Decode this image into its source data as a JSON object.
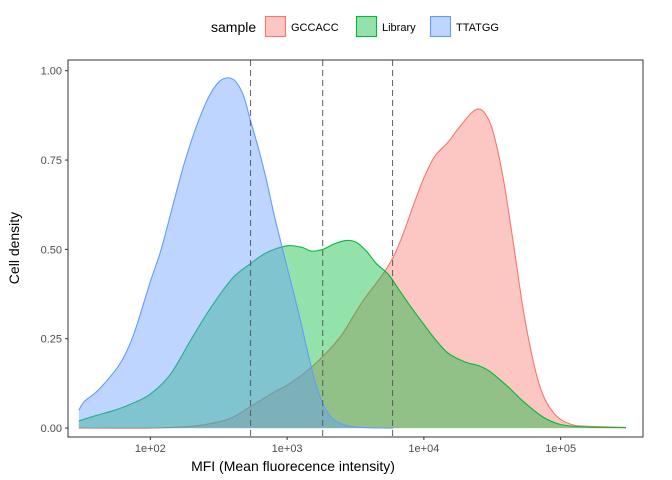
{
  "chart_data": {
    "type": "area",
    "title": "",
    "xlabel": "MFI (Mean fluorecence intensity)",
    "ylabel": "Cell density",
    "x_scale": "log10",
    "xlim": [
      25,
      400000
    ],
    "ylim": [
      -0.025,
      1.03
    ],
    "x_ticks": [
      {
        "value": 100,
        "label": "1e+02"
      },
      {
        "value": 1000,
        "label": "1e+03"
      },
      {
        "value": 10000,
        "label": "1e+04"
      },
      {
        "value": 100000,
        "label": "1e+05"
      }
    ],
    "y_ticks": [
      {
        "value": 0,
        "label": "0.00"
      },
      {
        "value": 0.25,
        "label": "0.25"
      },
      {
        "value": 0.5,
        "label": "0.50"
      },
      {
        "value": 0.75,
        "label": "0.75"
      },
      {
        "value": 1.0,
        "label": "1.00"
      }
    ],
    "legend": {
      "title": "sample",
      "position": "top"
    },
    "grid": false,
    "vlines": [
      540,
      1820,
      5900
    ],
    "series": [
      {
        "name": "GCCACC",
        "stroke": "#F8766D",
        "fill": "#F8766D",
        "points": [
          [
            30,
            0
          ],
          [
            100,
            0
          ],
          [
            200,
            0.005
          ],
          [
            300,
            0.015
          ],
          [
            400,
            0.03
          ],
          [
            540,
            0.06
          ],
          [
            800,
            0.1
          ],
          [
            1000,
            0.12
          ],
          [
            1300,
            0.15
          ],
          [
            1820,
            0.2
          ],
          [
            2500,
            0.26
          ],
          [
            3500,
            0.35
          ],
          [
            5000,
            0.43
          ],
          [
            6000,
            0.48
          ],
          [
            7000,
            0.54
          ],
          [
            8500,
            0.63
          ],
          [
            10000,
            0.7
          ],
          [
            12000,
            0.76
          ],
          [
            15000,
            0.8
          ],
          [
            18000,
            0.84
          ],
          [
            22000,
            0.88
          ],
          [
            25000,
            0.893
          ],
          [
            28000,
            0.88
          ],
          [
            32000,
            0.83
          ],
          [
            38000,
            0.7
          ],
          [
            45000,
            0.52
          ],
          [
            55000,
            0.3
          ],
          [
            70000,
            0.12
          ],
          [
            90000,
            0.04
          ],
          [
            120000,
            0.01
          ],
          [
            160000,
            0.005
          ],
          [
            300000,
            0.002
          ]
        ]
      },
      {
        "name": "Library",
        "stroke": "#00BA38",
        "fill": "#00BA38",
        "points": [
          [
            30,
            0.02
          ],
          [
            40,
            0.035
          ],
          [
            55,
            0.05
          ],
          [
            75,
            0.07
          ],
          [
            100,
            0.095
          ],
          [
            140,
            0.15
          ],
          [
            200,
            0.25
          ],
          [
            280,
            0.34
          ],
          [
            400,
            0.42
          ],
          [
            540,
            0.46
          ],
          [
            700,
            0.49
          ],
          [
            1000,
            0.51
          ],
          [
            1300,
            0.505
          ],
          [
            1500,
            0.495
          ],
          [
            1820,
            0.5
          ],
          [
            2200,
            0.515
          ],
          [
            2700,
            0.525
          ],
          [
            3200,
            0.52
          ],
          [
            3800,
            0.495
          ],
          [
            4500,
            0.46
          ],
          [
            5500,
            0.43
          ],
          [
            6500,
            0.39
          ],
          [
            8000,
            0.34
          ],
          [
            10000,
            0.29
          ],
          [
            12000,
            0.25
          ],
          [
            15000,
            0.21
          ],
          [
            20000,
            0.185
          ],
          [
            25000,
            0.175
          ],
          [
            30000,
            0.16
          ],
          [
            40000,
            0.12
          ],
          [
            55000,
            0.07
          ],
          [
            75000,
            0.03
          ],
          [
            100000,
            0.01
          ],
          [
            150000,
            0.003
          ],
          [
            300000,
            0.001
          ]
        ]
      },
      {
        "name": "TTATGG",
        "stroke": "#619CFF",
        "fill": "#619CFF",
        "points": [
          [
            30,
            0.05
          ],
          [
            33,
            0.075
          ],
          [
            40,
            0.1
          ],
          [
            50,
            0.14
          ],
          [
            60,
            0.18
          ],
          [
            70,
            0.23
          ],
          [
            80,
            0.29
          ],
          [
            100,
            0.41
          ],
          [
            120,
            0.5
          ],
          [
            150,
            0.64
          ],
          [
            180,
            0.75
          ],
          [
            220,
            0.85
          ],
          [
            270,
            0.93
          ],
          [
            320,
            0.97
          ],
          [
            370,
            0.98
          ],
          [
            420,
            0.97
          ],
          [
            480,
            0.93
          ],
          [
            540,
            0.86
          ],
          [
            620,
            0.78
          ],
          [
            700,
            0.7
          ],
          [
            800,
            0.6
          ],
          [
            900,
            0.52
          ],
          [
            1000,
            0.45
          ],
          [
            1200,
            0.33
          ],
          [
            1400,
            0.22
          ],
          [
            1600,
            0.13
          ],
          [
            1820,
            0.07
          ],
          [
            2100,
            0.03
          ],
          [
            2500,
            0.012
          ],
          [
            3000,
            0.004
          ],
          [
            4000,
            0.001
          ],
          [
            6000,
            0
          ]
        ]
      }
    ]
  }
}
